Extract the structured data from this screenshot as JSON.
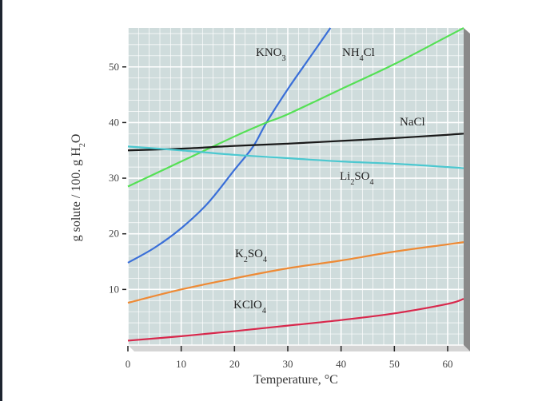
{
  "chart_data": {
    "type": "line",
    "xlabel": "Temperature, °C",
    "ylabel": "g solute / 100. g H2O",
    "xlim": [
      0,
      63
    ],
    "ylim": [
      0,
      57
    ],
    "xticks": [
      "0",
      "10",
      "20",
      "30",
      "40",
      "50",
      "60"
    ],
    "yticks": [
      "10",
      "20",
      "30",
      "40",
      "50"
    ],
    "grid": true,
    "legend": "inline labels",
    "series": [
      {
        "name": "KNO3",
        "color": "#3a6fd8",
        "x": [
          0,
          5,
          10,
          15,
          20,
          23.5,
          26,
          30,
          34,
          38
        ],
        "y": [
          14.8,
          17.5,
          21,
          25.5,
          31.5,
          35.7,
          40,
          46,
          51.5,
          57
        ]
      },
      {
        "name": "NH4Cl",
        "color": "#55e055",
        "x": [
          0,
          10,
          20,
          26,
          30,
          40,
          50,
          60,
          63
        ],
        "y": [
          28.5,
          33,
          37.5,
          40,
          41.5,
          46,
          50.5,
          55.5,
          57
        ]
      },
      {
        "name": "NaCl",
        "color": "#1a1a1a",
        "x": [
          0,
          10,
          20,
          30,
          40,
          50,
          60,
          63
        ],
        "y": [
          35,
          35.3,
          35.8,
          36.2,
          36.7,
          37.2,
          37.8,
          38
        ]
      },
      {
        "name": "Li2SO4",
        "color": "#4cc8d0",
        "x": [
          0,
          10,
          20,
          30,
          40,
          50,
          60,
          63
        ],
        "y": [
          35.7,
          35,
          34.2,
          33.6,
          33,
          32.6,
          32,
          31.8
        ]
      },
      {
        "name": "K2SO4",
        "color": "#ee8a35",
        "x": [
          0,
          10,
          20,
          30,
          40,
          50,
          60,
          63
        ],
        "y": [
          7.6,
          10,
          12,
          13.8,
          15.2,
          16.8,
          18.1,
          18.5
        ]
      },
      {
        "name": "KClO4",
        "color": "#d8284c",
        "x": [
          0,
          10,
          20,
          30,
          40,
          50,
          60,
          63
        ],
        "y": [
          0.8,
          1.6,
          2.5,
          3.5,
          4.5,
          5.7,
          7.4,
          8.3
        ]
      }
    ]
  }
}
